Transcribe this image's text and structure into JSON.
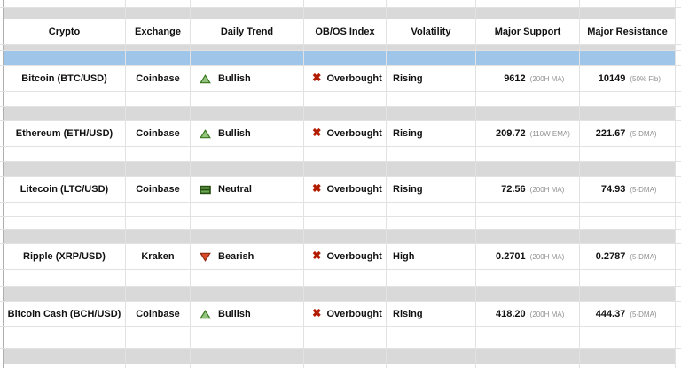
{
  "sheet": {
    "header": [
      "Crypto",
      "Exchange",
      "Daily Trend",
      "OB/OS Index",
      "Volatility",
      "Major Support",
      "Major Resistance"
    ],
    "obos_glyph": "✖",
    "rows": [
      {
        "crypto": "Bitcoin (BTC/USD)",
        "exchange": "Coinbase",
        "trend": "Bullish",
        "trend_icon": "bullish-triangle-up-icon",
        "obos": "Overbought",
        "obos_icon": "red-cross-icon",
        "volatility": "Rising",
        "support": "9612",
        "support_note": "(200H MA)",
        "resistance": "10149",
        "resistance_note": "(50% Fib)"
      },
      {
        "crypto": "Ethereum (ETH/USD)",
        "exchange": "Coinbase",
        "trend": "Bullish",
        "trend_icon": "bullish-triangle-up-icon",
        "obos": "Overbought",
        "obos_icon": "red-cross-icon",
        "volatility": "Rising",
        "support": "209.72",
        "support_note": "(110W EMA)",
        "resistance": "221.67",
        "resistance_note": "(5-DMA)"
      },
      {
        "crypto": "Litecoin (LTC/USD)",
        "exchange": "Coinbase",
        "trend": "Neutral",
        "trend_icon": "neutral-square-icon",
        "obos": "Overbought",
        "obos_icon": "red-cross-icon",
        "volatility": "Rising",
        "support": "72.56",
        "support_note": "(200H MA)",
        "resistance": "74.93",
        "resistance_note": "(5-DMA)"
      },
      {
        "crypto": "Ripple (XRP/USD)",
        "exchange": "Kraken",
        "trend": "Bearish",
        "trend_icon": "bearish-triangle-down-icon",
        "obos": "Overbought",
        "obos_icon": "red-cross-icon",
        "volatility": "High",
        "support": "0.2701",
        "support_note": "(200H MA)",
        "resistance": "0.2787",
        "resistance_note": "(5-DMA)"
      },
      {
        "crypto": "Bitcoin Cash (BCH/USD)",
        "exchange": "Coinbase",
        "trend": "Bullish",
        "trend_icon": "bullish-triangle-up-icon",
        "obos": "Overbought",
        "obos_icon": "red-cross-icon",
        "volatility": "Rising",
        "support": "418.20",
        "support_note": "(200H MA)",
        "resistance": "444.37",
        "resistance_note": "(5-DMA)"
      }
    ],
    "colors": {
      "highlight_row": "#9fc5e8",
      "separator_row": "#d9d9d9",
      "gridline": "#e2e2e2",
      "left_edge_line": "#aeaeae",
      "bullish_fill": "#93c47d",
      "bullish_border": "#38761d",
      "bearish_fill": "#db4b2a",
      "bearish_border": "#8c2a0f",
      "neutral_fill": "#6aa84f",
      "neutral_border": "#274e13",
      "obos_cross": "#b21c00",
      "note_text": "#8f8f8f"
    }
  }
}
